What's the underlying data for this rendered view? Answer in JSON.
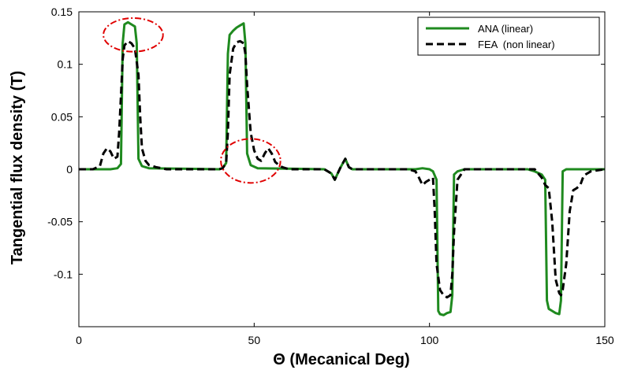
{
  "chart_data": {
    "type": "line",
    "title": "",
    "xlabel": "Θ (Mecanical Deg)",
    "ylabel": "Tangential flux density (T)",
    "xlim": [
      0,
      150
    ],
    "ylim": [
      -0.15,
      0.15
    ],
    "xticks": [
      0,
      50,
      100,
      150
    ],
    "xtick_labels": [
      "0",
      "50",
      "100",
      "150"
    ],
    "yticks": [
      0.15,
      0.1,
      0.05,
      0,
      -0.05,
      -0.1
    ],
    "ytick_labels": [
      "0.15",
      "0.1",
      "0.05",
      "0",
      "-0.05",
      "-0.1"
    ],
    "grid": false,
    "legend_position": "top-right",
    "series": [
      {
        "name": "ANA (linear)",
        "color": "#1f8a1f",
        "style": "solid",
        "x": [
          0,
          9,
          11,
          12,
          12.5,
          13,
          14,
          15,
          16,
          16.5,
          17,
          18,
          20,
          40,
          41,
          42,
          42.5,
          43,
          44,
          45,
          46,
          47,
          47.5,
          48,
          49,
          51,
          70,
          72,
          73,
          74.5,
          76,
          77,
          78,
          79,
          96,
          98,
          100,
          101,
          102,
          102.5,
          103,
          104,
          105,
          106,
          106.5,
          107,
          108,
          110,
          128,
          130,
          132,
          133,
          133.5,
          134,
          135,
          136,
          137,
          137.5,
          138,
          139,
          141,
          150
        ],
        "y": [
          0,
          0,
          0.001,
          0.005,
          0.12,
          0.138,
          0.14,
          0.138,
          0.136,
          0.12,
          0.01,
          0.003,
          0.001,
          0,
          0.001,
          0.006,
          0.11,
          0.128,
          0.132,
          0.135,
          0.137,
          0.139,
          0.12,
          0.015,
          0.004,
          0.001,
          0,
          -0.004,
          -0.01,
          0.001,
          0.01,
          0.002,
          0,
          0,
          0,
          0.001,
          0,
          -0.002,
          -0.01,
          -0.135,
          -0.138,
          -0.139,
          -0.137,
          -0.136,
          -0.12,
          -0.005,
          -0.002,
          0,
          0,
          -0.002,
          -0.005,
          -0.01,
          -0.125,
          -0.133,
          -0.135,
          -0.137,
          -0.138,
          -0.125,
          -0.002,
          0,
          0,
          0
        ]
      },
      {
        "name": "FEA  (non linear)",
        "color": "#000000",
        "style": "dashed",
        "x": [
          0,
          4,
          6,
          7,
          8,
          9,
          10,
          11,
          11.5,
          12,
          12.5,
          13,
          14,
          15,
          16,
          17,
          17.5,
          18,
          19,
          20,
          22,
          25,
          40,
          41,
          42,
          42.5,
          43,
          44,
          45,
          46,
          47,
          47.5,
          48,
          49,
          50,
          51,
          52,
          53,
          54,
          55,
          56,
          57,
          58,
          60,
          70,
          72,
          73,
          74.5,
          76,
          77,
          78,
          79,
          94,
          96,
          97,
          98,
          99,
          100,
          101,
          101.5,
          102,
          103,
          104,
          105,
          106,
          106.5,
          107,
          108,
          110,
          130,
          131,
          132,
          133,
          134,
          135,
          136,
          137,
          137.5,
          138,
          139,
          140,
          141,
          142,
          143,
          144,
          146,
          150
        ],
        "y": [
          0,
          0,
          0.003,
          0.015,
          0.02,
          0.017,
          0.01,
          0.012,
          0.035,
          0.07,
          0.105,
          0.118,
          0.122,
          0.12,
          0.115,
          0.09,
          0.05,
          0.02,
          0.008,
          0.004,
          0.002,
          0,
          0,
          0.001,
          0.006,
          0.035,
          0.09,
          0.115,
          0.121,
          0.122,
          0.12,
          0.11,
          0.08,
          0.035,
          0.018,
          0.01,
          0.008,
          0.015,
          0.02,
          0.015,
          0.007,
          0.004,
          0.002,
          0,
          0,
          -0.004,
          -0.01,
          0.001,
          0.01,
          0.002,
          0,
          0,
          0,
          -0.002,
          -0.008,
          -0.015,
          -0.012,
          -0.01,
          -0.008,
          -0.04,
          -0.09,
          -0.115,
          -0.12,
          -0.122,
          -0.12,
          -0.1,
          -0.06,
          -0.01,
          0,
          0,
          -0.004,
          -0.008,
          -0.015,
          -0.018,
          -0.05,
          -0.105,
          -0.118,
          -0.12,
          -0.115,
          -0.09,
          -0.04,
          -0.02,
          -0.018,
          -0.015,
          -0.006,
          -0.002,
          0
        ]
      }
    ],
    "annotations": [
      {
        "shape": "dashed-ellipse",
        "color": "#e00000",
        "cx": 15.5,
        "cy": 0.128,
        "rx": 8.5,
        "ry": 0.016
      },
      {
        "shape": "dashed-ellipse",
        "color": "#e00000",
        "cx": 49,
        "cy": 0.008,
        "rx": 8.5,
        "ry": 0.021
      }
    ]
  }
}
